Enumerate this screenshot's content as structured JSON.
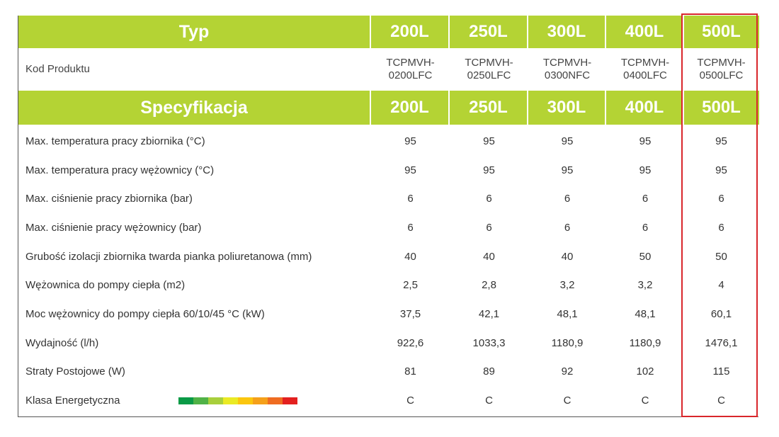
{
  "header1": {
    "title": "Typ",
    "volumes": [
      "200L",
      "250L",
      "300L",
      "400L",
      "500L"
    ]
  },
  "codes": {
    "label": "Kod Produktu",
    "values": [
      [
        "TCPMVH-",
        "0200LFC"
      ],
      [
        "TCPMVH-",
        "0250LFC"
      ],
      [
        "TCPMVH-",
        "0300NFC"
      ],
      [
        "TCPMVH-",
        "0400LFC"
      ],
      [
        "TCPMVH-",
        "0500LFC"
      ]
    ]
  },
  "header2": {
    "title": "Specyfikacja",
    "volumes": [
      "200L",
      "250L",
      "300L",
      "400L",
      "500L"
    ]
  },
  "rows": [
    {
      "label": "Max. temperatura pracy zbiornika (°C)",
      "values": [
        "95",
        "95",
        "95",
        "95",
        "95"
      ]
    },
    {
      "label": "Max. temperatura pracy wężownicy (°C)",
      "values": [
        "95",
        "95",
        "95",
        "95",
        "95"
      ]
    },
    {
      "label": "Max. ciśnienie pracy zbiornika (bar)",
      "values": [
        "6",
        "6",
        "6",
        "6",
        "6"
      ]
    },
    {
      "label": "Max. ciśnienie pracy wężownicy (bar)",
      "values": [
        "6",
        "6",
        "6",
        "6",
        "6"
      ]
    },
    {
      "label": "Grubość izolacji zbiornika twarda pianka poliuretanowa  (mm)",
      "values": [
        "40",
        "40",
        "40",
        "50",
        "50"
      ]
    },
    {
      "label": "Wężownica do pompy ciepła (m2)",
      "values": [
        "2,5",
        "2,8",
        "3,2",
        "3,2",
        "4"
      ]
    },
    {
      "label": "Moc wężownicy do pompy ciepła 60/10/45 °C (kW)",
      "values": [
        "37,5",
        "42,1",
        "48,1",
        "48,1",
        "60,1"
      ]
    },
    {
      "label": "Wydajność (l/h)",
      "values": [
        "922,6",
        "1033,3",
        "1180,9",
        "1180,9",
        "1476,1"
      ]
    },
    {
      "label": "Straty Postojowe (W)",
      "values": [
        "81",
        "89",
        "92",
        "102",
        "115"
      ]
    },
    {
      "label": "Klasa Energetyczna",
      "values": [
        "C",
        "C",
        "C",
        "C",
        "C"
      ]
    }
  ],
  "energy_scale_colors": [
    "#0a9a46",
    "#50b247",
    "#a8cf3c",
    "#eaea24",
    "#fbc60e",
    "#f5a01a",
    "#ef6c21",
    "#e3201f"
  ],
  "highlight_color": "#d9262b",
  "accent_color": "#b4d334"
}
